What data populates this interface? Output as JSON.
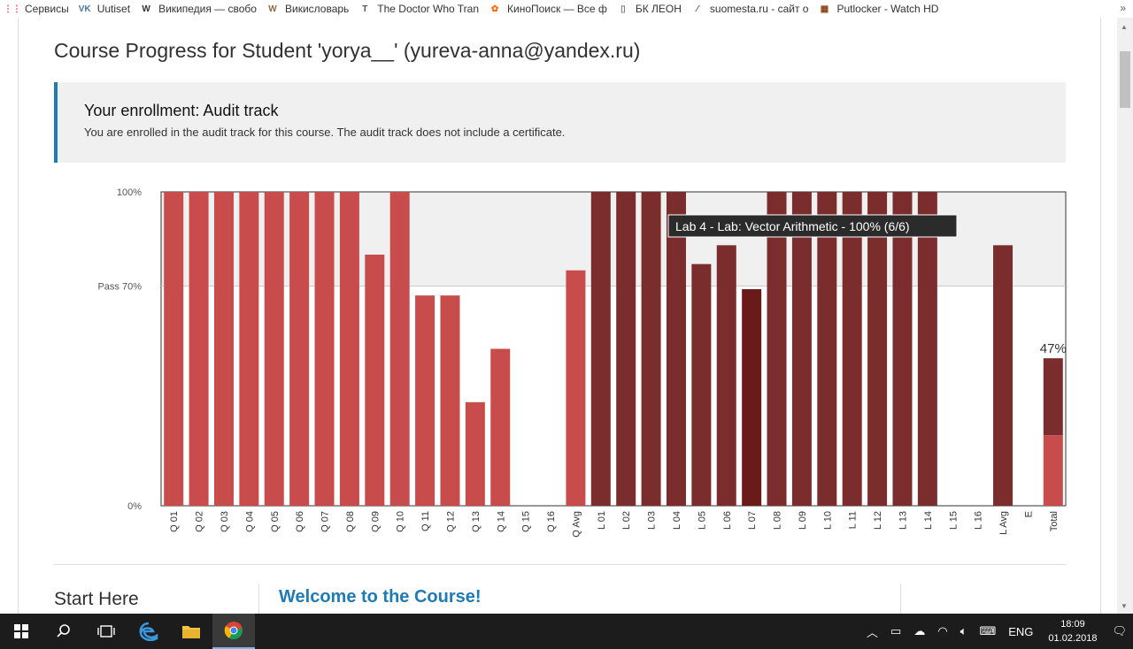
{
  "bookmarks": [
    {
      "label": "Сервисы",
      "icon": "apps-grid-icon",
      "color": "#e94235"
    },
    {
      "label": "Uutiset",
      "icon": "vk-icon",
      "color": "#4a76a8"
    },
    {
      "label": "Википедия — свобо",
      "icon": "wikipedia-icon",
      "color": "#333333"
    },
    {
      "label": "Викисловарь",
      "icon": "wiktionary-icon",
      "color": "#8a6d3b"
    },
    {
      "label": "The Doctor Who Tran",
      "icon": "doctor-who-icon",
      "color": "#555555"
    },
    {
      "label": "КиноПоиск — Все ф",
      "icon": "kinopoisk-icon",
      "color": "#f60"
    },
    {
      "label": "БК ЛЕОН",
      "icon": "document-icon",
      "color": "#777777"
    },
    {
      "label": "suomesta.ru - сайт о",
      "icon": "suomesta-icon",
      "color": "#1e5aa8"
    },
    {
      "label": "Putlocker - Watch HD",
      "icon": "film-icon",
      "color": "#8b4513"
    }
  ],
  "page": {
    "title": "Course Progress for Student 'yorya__' (yureva-anna@yandex.ru)",
    "enrollment": {
      "heading": "Your enrollment: Audit track",
      "text": "You are enrolled in the audit track for this course. The audit track does not include a certificate."
    },
    "section_title": "Start Here",
    "welcome_link": "Welcome to the Course!"
  },
  "colors": {
    "quiz": "#c84c4c",
    "lab": "#7b2d2d",
    "lab_hover": "#6b1a1a",
    "pass_band": "#f0f0f0",
    "accent": "#1e7bb5"
  },
  "chart_data": {
    "type": "bar",
    "ylim": [
      0,
      100
    ],
    "y_ticks": [
      {
        "value": 100,
        "label": "100%"
      },
      {
        "value": 70,
        "label": "Pass 70%"
      },
      {
        "value": 0,
        "label": "0%"
      }
    ],
    "tooltip": "Lab 4 - Lab: Vector Arithmetic - 100% (6/6)",
    "total_label": "47%",
    "categories": [
      "Q 01",
      "Q 02",
      "Q 03",
      "Q 04",
      "Q 05",
      "Q 06",
      "Q 07",
      "Q 08",
      "Q 09",
      "Q 10",
      "Q 11",
      "Q 12",
      "Q 13",
      "Q 14",
      "Q 15",
      "Q 16",
      "Q Avg",
      "L 01",
      "L 02",
      "L 03",
      "L 04",
      "L 05",
      "L 06",
      "L 07",
      "L 08",
      "L 09",
      "L 10",
      "L 11",
      "L 12",
      "L 13",
      "L 14",
      "L 15",
      "L 16",
      "L Avg",
      "E",
      "Total"
    ],
    "series": [
      {
        "kind": "quiz",
        "values": [
          100,
          100,
          100,
          100,
          100,
          100,
          100,
          100,
          80,
          100,
          67,
          67,
          33,
          50,
          0,
          0,
          75,
          null,
          null,
          null,
          null,
          null,
          null,
          null,
          null,
          null,
          null,
          null,
          null,
          null,
          null,
          null,
          null,
          null,
          null,
          null
        ]
      },
      {
        "kind": "lab",
        "values": [
          null,
          null,
          null,
          null,
          null,
          null,
          null,
          null,
          null,
          null,
          null,
          null,
          null,
          null,
          null,
          null,
          null,
          100,
          100,
          100,
          100,
          77,
          83,
          69,
          100,
          100,
          100,
          100,
          100,
          100,
          100,
          0,
          0,
          83,
          null,
          null
        ]
      }
    ],
    "total_stack": [
      {
        "kind": "quiz",
        "value": 22.5
      },
      {
        "kind": "lab",
        "value": 24.5
      }
    ],
    "highlighted_category": "L 07"
  }
}
